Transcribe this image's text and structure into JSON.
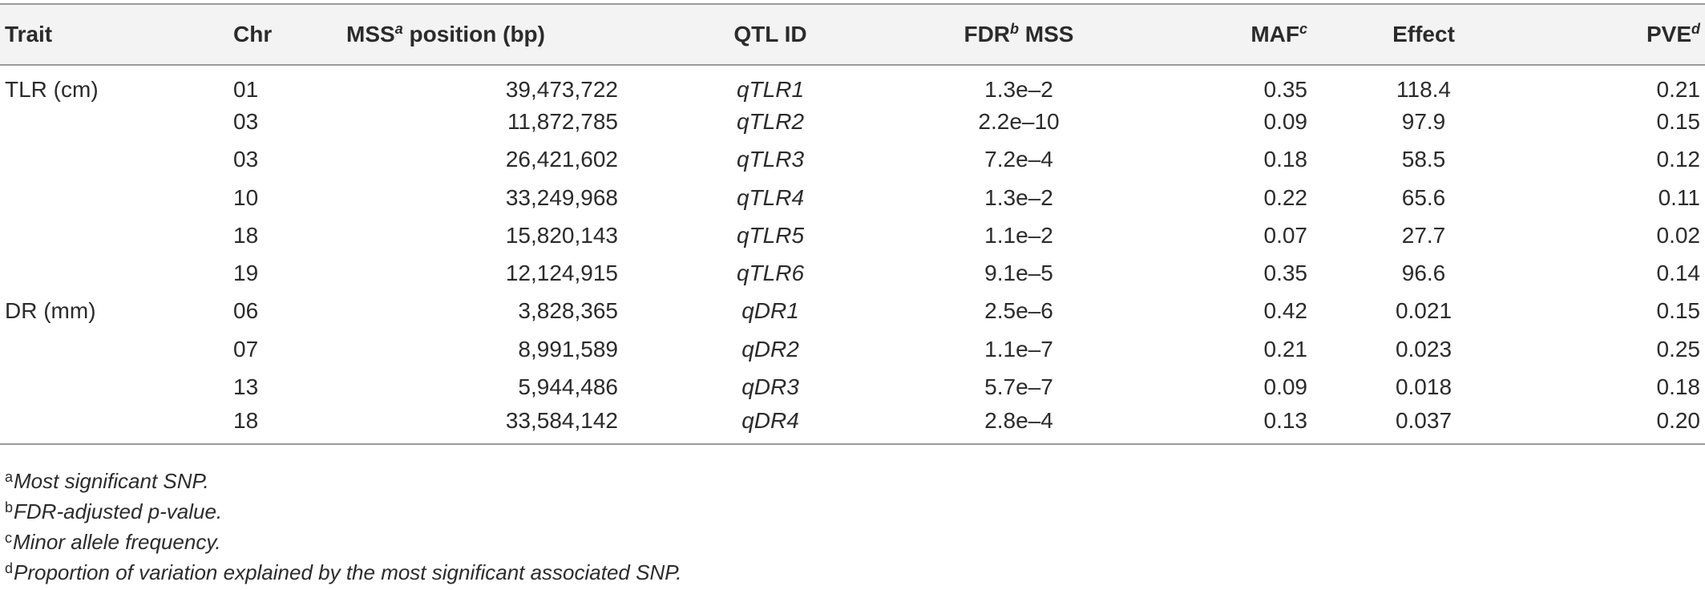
{
  "table": {
    "headers": {
      "trait": "Trait",
      "chr": "Chr",
      "mss_prefix": "MSS",
      "mss_sup": "a",
      "mss_suffix": " position (bp)",
      "qtl": "QTL ID",
      "fdr_prefix": "FDR",
      "fdr_sup": "b",
      "fdr_suffix": " MSS",
      "maf_prefix": "MAF",
      "maf_sup": "c",
      "effect": "Effect",
      "pve_prefix": "PVE",
      "pve_sup": "d"
    },
    "rows": [
      {
        "trait": "TLR (cm)",
        "chr": "01",
        "mss": "39,473,722",
        "qtl": "qTLR1",
        "fdr": "1.3e–2",
        "maf": "0.35",
        "effect": "118.4",
        "pve": "0.21"
      },
      {
        "trait": "",
        "chr": "03",
        "mss": "11,872,785",
        "qtl": "qTLR2",
        "fdr": "2.2e–10",
        "maf": "0.09",
        "effect": "97.9",
        "pve": "0.15"
      },
      {
        "trait": "",
        "chr": "03",
        "mss": "26,421,602",
        "qtl": "qTLR3",
        "fdr": "7.2e–4",
        "maf": "0.18",
        "effect": "58.5",
        "pve": "0.12"
      },
      {
        "trait": "",
        "chr": "10",
        "mss": "33,249,968",
        "qtl": "qTLR4",
        "fdr": "1.3e–2",
        "maf": "0.22",
        "effect": "65.6",
        "pve": "0.11"
      },
      {
        "trait": "",
        "chr": "18",
        "mss": "15,820,143",
        "qtl": "qTLR5",
        "fdr": "1.1e–2",
        "maf": "0.07",
        "effect": "27.7",
        "pve": "0.02"
      },
      {
        "trait": "",
        "chr": "19",
        "mss": "12,124,915",
        "qtl": "qTLR6",
        "fdr": "9.1e–5",
        "maf": "0.35",
        "effect": "96.6",
        "pve": "0.14"
      },
      {
        "trait": "DR (mm)",
        "chr": "06",
        "mss": "3,828,365",
        "qtl": "qDR1",
        "fdr": "2.5e–6",
        "maf": "0.42",
        "effect": "0.021",
        "pve": "0.15"
      },
      {
        "trait": "",
        "chr": "07",
        "mss": "8,991,589",
        "qtl": "qDR2",
        "fdr": "1.1e–7",
        "maf": "0.21",
        "effect": "0.023",
        "pve": "0.25"
      },
      {
        "trait": "",
        "chr": "13",
        "mss": "5,944,486",
        "qtl": "qDR3",
        "fdr": "5.7e–7",
        "maf": "0.09",
        "effect": "0.018",
        "pve": "0.18"
      },
      {
        "trait": "",
        "chr": "18",
        "mss": "33,584,142",
        "qtl": "qDR4",
        "fdr": "2.8e–4",
        "maf": "0.13",
        "effect": "0.037",
        "pve": "0.20"
      }
    ]
  },
  "footnotes": [
    {
      "mark": "a",
      "text": "Most significant SNP."
    },
    {
      "mark": "b",
      "text": "FDR-adjusted p-value."
    },
    {
      "mark": "c",
      "text": "Minor allele frequency."
    },
    {
      "mark": "d",
      "text": "Proportion of variation explained by the most significant associated SNP."
    }
  ]
}
